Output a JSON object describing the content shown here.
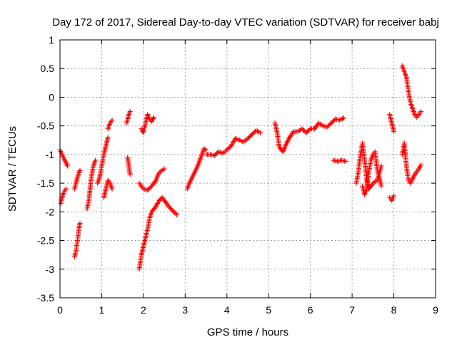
{
  "chart_data": {
    "type": "scatter",
    "title": "Day 172 of 2017, Sidereal Day-to-day VTEC variation (SDTVAR) for receiver babj",
    "xlabel": "GPS time / hours",
    "ylabel": "SDTVAR / TECUs",
    "xlim": [
      0,
      9
    ],
    "ylim": [
      -3.5,
      1
    ],
    "xticks": [
      "0",
      "1",
      "2",
      "3",
      "4",
      "5",
      "6",
      "7",
      "8",
      "9"
    ],
    "xtick_values": [
      0,
      1,
      2,
      3,
      4,
      5,
      6,
      7,
      8,
      9
    ],
    "yticks": [
      "1",
      "0.5",
      "0",
      "-0.5",
      "-1",
      "-1.5",
      "-2",
      "-2.5",
      "-3",
      "-3.5"
    ],
    "ytick_values": [
      1,
      0.5,
      0,
      -0.5,
      -1,
      -1.5,
      -2,
      -2.5,
      -3,
      -3.5
    ],
    "grid": true,
    "marker": "+",
    "color": "#ff0000",
    "series": [
      {
        "name": "babj",
        "segments": [
          [
            [
              0.0,
              -0.92
            ],
            [
              0.05,
              -1.0
            ],
            [
              0.1,
              -1.08
            ],
            [
              0.15,
              -1.15
            ],
            [
              0.18,
              -1.2
            ]
          ],
          [
            [
              0.02,
              -1.85
            ],
            [
              0.05,
              -1.75
            ],
            [
              0.08,
              -1.68
            ],
            [
              0.12,
              -1.62
            ],
            [
              0.15,
              -1.6
            ]
          ],
          [
            [
              0.35,
              -2.78
            ],
            [
              0.38,
              -2.7
            ],
            [
              0.42,
              -2.5
            ],
            [
              0.45,
              -2.3
            ],
            [
              0.48,
              -2.2
            ]
          ],
          [
            [
              0.35,
              -1.6
            ],
            [
              0.38,
              -1.5
            ],
            [
              0.42,
              -1.4
            ],
            [
              0.45,
              -1.32
            ],
            [
              0.48,
              -1.28
            ]
          ],
          [
            [
              0.65,
              -1.95
            ],
            [
              0.7,
              -1.75
            ],
            [
              0.75,
              -1.4
            ],
            [
              0.8,
              -1.2
            ],
            [
              0.85,
              -1.1
            ]
          ],
          [
            [
              0.9,
              -1.5
            ],
            [
              0.95,
              -1.4
            ],
            [
              1.0,
              -1.2
            ],
            [
              1.05,
              -1.0
            ],
            [
              1.1,
              -0.85
            ],
            [
              1.15,
              -0.7
            ]
          ],
          [
            [
              1.05,
              -1.75
            ],
            [
              1.1,
              -1.6
            ],
            [
              1.15,
              -1.45
            ],
            [
              1.2,
              -1.5
            ],
            [
              1.25,
              -1.6
            ]
          ],
          [
            [
              1.15,
              -0.55
            ],
            [
              1.2,
              -0.45
            ],
            [
              1.25,
              -0.4
            ]
          ],
          [
            [
              1.6,
              -0.45
            ],
            [
              1.65,
              -0.3
            ],
            [
              1.68,
              -0.25
            ]
          ],
          [
            [
              1.62,
              -1.05
            ],
            [
              1.65,
              -1.2
            ],
            [
              1.68,
              -1.35
            ]
          ],
          [
            [
              1.9,
              -3.0
            ],
            [
              1.95,
              -2.75
            ],
            [
              2.0,
              -2.6
            ],
            [
              2.05,
              -2.45
            ],
            [
              2.1,
              -2.3
            ],
            [
              2.15,
              -2.1
            ],
            [
              2.2,
              -2.0
            ],
            [
              2.3,
              -1.9
            ],
            [
              2.4,
              -1.78
            ],
            [
              2.45,
              -1.75
            ],
            [
              2.5,
              -1.8
            ],
            [
              2.6,
              -1.9
            ],
            [
              2.7,
              -1.98
            ],
            [
              2.8,
              -2.05
            ]
          ],
          [
            [
              1.9,
              -1.5
            ],
            [
              1.95,
              -1.55
            ],
            [
              2.0,
              -1.6
            ],
            [
              2.1,
              -1.62
            ],
            [
              2.2,
              -1.55
            ],
            [
              2.3,
              -1.45
            ],
            [
              2.35,
              -1.35
            ],
            [
              2.4,
              -1.3
            ],
            [
              2.5,
              -1.25
            ]
          ],
          [
            [
              1.95,
              -0.55
            ],
            [
              2.0,
              -0.62
            ],
            [
              2.05,
              -0.45
            ],
            [
              2.1,
              -0.3
            ],
            [
              2.15,
              -0.38
            ],
            [
              2.2,
              -0.42
            ],
            [
              2.25,
              -0.35
            ]
          ],
          [
            [
              3.05,
              -1.6
            ],
            [
              3.1,
              -1.5
            ],
            [
              3.2,
              -1.35
            ],
            [
              3.3,
              -1.2
            ],
            [
              3.4,
              -1.0
            ],
            [
              3.45,
              -0.9
            ],
            [
              3.5,
              -0.92
            ]
          ],
          [
            [
              3.5,
              -1.0
            ],
            [
              3.6,
              -1.0
            ],
            [
              3.7,
              -1.02
            ],
            [
              3.8,
              -0.95
            ],
            [
              3.9,
              -0.98
            ],
            [
              4.0,
              -0.92
            ],
            [
              4.1,
              -0.85
            ],
            [
              4.2,
              -0.72
            ],
            [
              4.3,
              -0.75
            ],
            [
              4.4,
              -0.78
            ],
            [
              4.5,
              -0.72
            ],
            [
              4.6,
              -0.65
            ],
            [
              4.7,
              -0.58
            ],
            [
              4.8,
              -0.62
            ]
          ],
          [
            [
              5.15,
              -0.45
            ],
            [
              5.2,
              -0.6
            ],
            [
              5.25,
              -0.85
            ],
            [
              5.3,
              -0.92
            ],
            [
              5.35,
              -0.95
            ],
            [
              5.4,
              -0.85
            ],
            [
              5.5,
              -0.7
            ],
            [
              5.6,
              -0.6
            ],
            [
              5.7,
              -0.6
            ],
            [
              5.8,
              -0.55
            ],
            [
              5.9,
              -0.62
            ],
            [
              6.0,
              -0.55
            ],
            [
              6.1,
              -0.55
            ],
            [
              6.2,
              -0.45
            ],
            [
              6.3,
              -0.5
            ],
            [
              6.4,
              -0.52
            ],
            [
              6.5,
              -0.45
            ],
            [
              6.6,
              -0.38
            ],
            [
              6.7,
              -0.4
            ],
            [
              6.8,
              -0.36
            ]
          ],
          [
            [
              6.55,
              -1.1
            ],
            [
              6.65,
              -1.12
            ],
            [
              6.75,
              -1.1
            ],
            [
              6.85,
              -1.12
            ]
          ],
          [
            [
              7.1,
              -1.5
            ],
            [
              7.15,
              -1.3
            ],
            [
              7.2,
              -1.0
            ],
            [
              7.25,
              -0.8
            ],
            [
              7.3,
              -1.1
            ],
            [
              7.35,
              -1.45
            ],
            [
              7.4,
              -1.6
            ],
            [
              7.5,
              -1.5
            ],
            [
              7.6,
              -1.45
            ],
            [
              7.7,
              -1.2
            ]
          ],
          [
            [
              7.25,
              -1.55
            ],
            [
              7.3,
              -1.7
            ],
            [
              7.35,
              -1.6
            ],
            [
              7.4,
              -1.3
            ],
            [
              7.45,
              -1.1
            ],
            [
              7.5,
              -1.0
            ],
            [
              7.55,
              -0.95
            ],
            [
              7.6,
              -1.25
            ],
            [
              7.65,
              -1.4
            ],
            [
              7.7,
              -1.55
            ]
          ],
          [
            [
              7.9,
              -0.3
            ],
            [
              7.95,
              -0.45
            ],
            [
              8.0,
              -0.6
            ]
          ],
          [
            [
              7.9,
              -1.75
            ],
            [
              7.95,
              -1.8
            ],
            [
              8.0,
              -1.72
            ]
          ],
          [
            [
              8.2,
              0.55
            ],
            [
              8.25,
              0.45
            ],
            [
              8.3,
              0.35
            ],
            [
              8.35,
              0.1
            ],
            [
              8.4,
              -0.1
            ],
            [
              8.45,
              -0.2
            ],
            [
              8.5,
              -0.3
            ],
            [
              8.55,
              -0.35
            ],
            [
              8.6,
              -0.3
            ],
            [
              8.65,
              -0.25
            ]
          ],
          [
            [
              8.2,
              -1.0
            ],
            [
              8.25,
              -0.8
            ],
            [
              8.3,
              -1.2
            ],
            [
              8.35,
              -1.45
            ],
            [
              8.4,
              -1.5
            ],
            [
              8.45,
              -1.42
            ],
            [
              8.5,
              -1.35
            ],
            [
              8.55,
              -1.3
            ],
            [
              8.6,
              -1.25
            ],
            [
              8.65,
              -1.18
            ]
          ]
        ]
      }
    ]
  }
}
